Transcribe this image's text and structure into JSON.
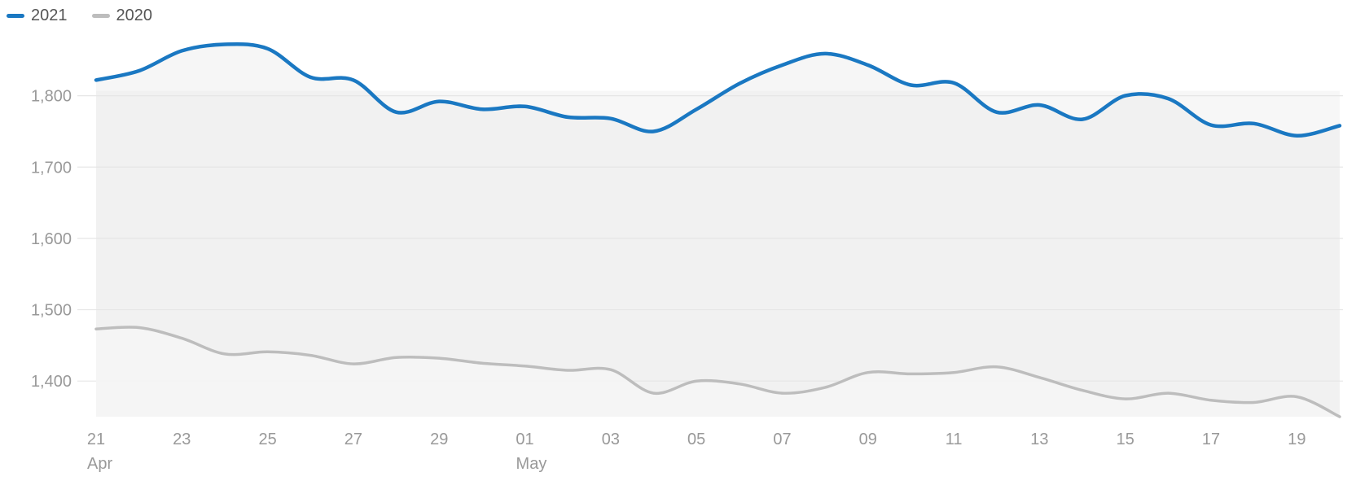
{
  "chart_data": {
    "type": "area",
    "legend": {
      "placement": "top-left"
    },
    "categories": [
      "21",
      "22",
      "23",
      "24",
      "25",
      "26",
      "27",
      "28",
      "29",
      "30",
      "01",
      "02",
      "03",
      "04",
      "05",
      "06",
      "07",
      "08",
      "09",
      "10",
      "11",
      "12",
      "13",
      "14",
      "15",
      "16",
      "17",
      "18",
      "19",
      "20"
    ],
    "x_tick_labels": [
      {
        "label": "21",
        "sublabel": "Apr",
        "index": 0
      },
      {
        "label": "23",
        "sublabel": "",
        "index": 2
      },
      {
        "label": "25",
        "sublabel": "",
        "index": 4
      },
      {
        "label": "27",
        "sublabel": "",
        "index": 6
      },
      {
        "label": "29",
        "sublabel": "",
        "index": 8
      },
      {
        "label": "01",
        "sublabel": "May",
        "index": 10
      },
      {
        "label": "03",
        "sublabel": "",
        "index": 12
      },
      {
        "label": "05",
        "sublabel": "",
        "index": 14
      },
      {
        "label": "07",
        "sublabel": "",
        "index": 16
      },
      {
        "label": "09",
        "sublabel": "",
        "index": 18
      },
      {
        "label": "11",
        "sublabel": "",
        "index": 20
      },
      {
        "label": "13",
        "sublabel": "",
        "index": 22
      },
      {
        "label": "15",
        "sublabel": "",
        "index": 24
      },
      {
        "label": "17",
        "sublabel": "",
        "index": 26
      },
      {
        "label": "19",
        "sublabel": "",
        "index": 28
      }
    ],
    "y_ticks": [
      {
        "value": 1400,
        "label": "1,400"
      },
      {
        "value": 1500,
        "label": "1,500"
      },
      {
        "value": 1600,
        "label": "1,600"
      },
      {
        "value": 1700,
        "label": "1,700"
      },
      {
        "value": 1800,
        "label": "1,800"
      }
    ],
    "ylim": [
      1350,
      1900
    ],
    "grid": true,
    "series": [
      {
        "name": "2021",
        "color": "#1a78c2",
        "values": [
          1822,
          1835,
          1863,
          1872,
          1866,
          1826,
          1822,
          1777,
          1792,
          1781,
          1785,
          1770,
          1768,
          1750,
          1781,
          1817,
          1843,
          1859,
          1843,
          1815,
          1818,
          1777,
          1787,
          1767,
          1800,
          1796,
          1759,
          1761,
          1744,
          1758
        ]
      },
      {
        "name": "2020",
        "color": "#bdbdbd",
        "values": [
          1473,
          1475,
          1460,
          1438,
          1441,
          1436,
          1424,
          1433,
          1432,
          1425,
          1421,
          1415,
          1416,
          1383,
          1400,
          1396,
          1383,
          1391,
          1412,
          1410,
          1412,
          1420,
          1405,
          1387,
          1375,
          1383,
          1373,
          1370,
          1378,
          1350
        ]
      }
    ]
  }
}
